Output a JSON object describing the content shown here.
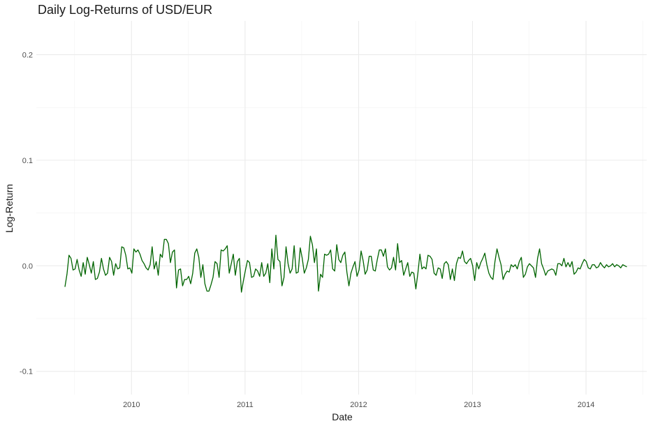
{
  "chart_data": {
    "type": "line",
    "title": "Daily Log-Returns of USD/EUR",
    "xlabel": "Date",
    "ylabel": "Log-Return",
    "x_ticks": [
      "2010",
      "2011",
      "2012",
      "2013",
      "2014"
    ],
    "y_ticks": [
      "-0.1",
      "0.0",
      "0.1",
      "0.2"
    ],
    "xlim": [
      "2009-03-01",
      "2014-07-15"
    ],
    "ylim": [
      -0.122,
      0.232
    ],
    "grid": true,
    "line_color": "#006400",
    "series": [
      {
        "start": "2009-06-01",
        "end": "2014-05-12",
        "values": [
          -0.02,
          -0.008,
          0.01,
          0.007,
          -0.004,
          -0.003,
          0.006,
          -0.004,
          -0.01,
          0.003,
          -0.008,
          0.008,
          0.001,
          -0.007,
          0.004,
          -0.013,
          -0.012,
          -0.006,
          0.007,
          -0.003,
          -0.009,
          -0.007,
          0.008,
          0.004,
          -0.009,
          0.002,
          -0.003,
          -0.002,
          0.018,
          0.017,
          0.01,
          -0.003,
          -0.002,
          -0.007,
          0.016,
          0.013,
          0.015,
          0.011,
          0.005,
          0.002,
          -0.002,
          -0.004,
          0.001,
          0.018,
          -0.003,
          0.004,
          -0.009,
          0.011,
          0.008,
          0.025,
          0.025,
          0.021,
          0.003,
          0.013,
          0.015,
          -0.021,
          -0.004,
          -0.003,
          -0.019,
          -0.013,
          -0.013,
          -0.01,
          -0.017,
          -0.007,
          0.012,
          0.016,
          0.008,
          -0.011,
          0.001,
          -0.017,
          -0.024,
          -0.024,
          -0.018,
          -0.011,
          0.004,
          0.002,
          -0.011,
          0.015,
          0.014,
          0.016,
          0.019,
          -0.007,
          0.002,
          0.011,
          -0.009,
          0.004,
          0.007,
          -0.025,
          -0.014,
          -0.004,
          0.005,
          0.003,
          -0.011,
          -0.01,
          -0.003,
          -0.005,
          -0.01,
          0.003,
          -0.01,
          -0.007,
          0.002,
          -0.016,
          0.016,
          -0.003,
          0.029,
          0.006,
          0.004,
          -0.019,
          -0.011,
          0.018,
          0.002,
          -0.007,
          -0.003,
          0.019,
          -0.007,
          -0.006,
          0.017,
          0.007,
          -0.007,
          -0.002,
          0.006,
          0.028,
          0.02,
          0.003,
          0.016,
          -0.024,
          -0.008,
          -0.011,
          0.011,
          0.01,
          0.011,
          0.015,
          -0.003,
          -0.005,
          0.02,
          0.006,
          0.003,
          0.01,
          0.013,
          -0.006,
          -0.019,
          -0.007,
          -0.001,
          0.004,
          -0.01,
          -0.004,
          0.014,
          0.005,
          -0.008,
          -0.004,
          0.009,
          0.009,
          -0.004,
          -0.005,
          0.006,
          0.015,
          0.015,
          0.009,
          0.016,
          -0.001,
          -0.004,
          -0.002,
          0.008,
          -0.004,
          0.021,
          0.003,
          0.005,
          -0.009,
          -0.003,
          0.003,
          -0.01,
          -0.006,
          -0.007,
          -0.022,
          -0.007,
          0.011,
          -0.003,
          -0.001,
          -0.003,
          0.01,
          0.009,
          0.006,
          -0.007,
          -0.009,
          -0.002,
          -0.003,
          -0.012,
          0.002,
          0.004,
          0.001,
          -0.013,
          -0.003,
          -0.014,
          0.002,
          0.008,
          0.007,
          0.014,
          0.004,
          0.002,
          0.005,
          0.007,
          0.0,
          -0.014,
          0.003,
          -0.003,
          0.003,
          0.007,
          0.012,
          0.001,
          -0.007,
          -0.011,
          -0.013,
          0.004,
          0.016,
          0.008,
          0.001,
          -0.013,
          -0.008,
          -0.005,
          -0.006,
          0.001,
          -0.001,
          0.001,
          -0.003,
          0.004,
          0.008,
          -0.011,
          -0.008,
          -0.001,
          0.002,
          0.0,
          -0.002,
          -0.011,
          0.007,
          0.016,
          0.002,
          -0.003,
          -0.009,
          -0.005,
          -0.004,
          -0.003,
          -0.004,
          -0.009,
          0.002,
          0.002,
          0.0,
          0.007,
          -0.001,
          0.003,
          -0.001,
          0.004,
          -0.008,
          -0.006,
          -0.002,
          -0.003,
          0.002,
          0.006,
          0.004,
          -0.002,
          -0.003,
          0.001,
          0.001,
          -0.002,
          -0.001,
          0.003,
          0.0,
          -0.002,
          0.001,
          -0.001,
          0.0,
          0.002,
          -0.001,
          0.001,
          0.0,
          -0.002,
          0.001,
          0.0,
          -0.001
        ]
      }
    ]
  }
}
